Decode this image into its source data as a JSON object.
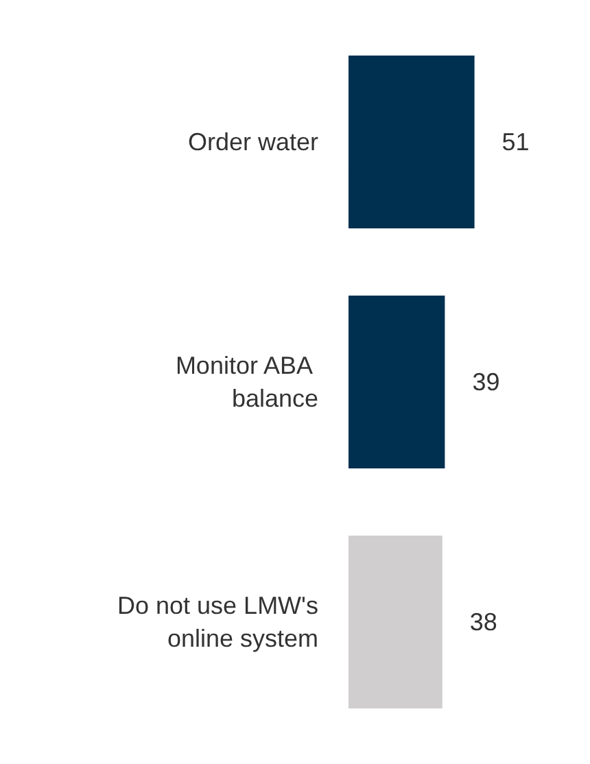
{
  "chart_data": {
    "type": "bar",
    "orientation": "horizontal",
    "categories": [
      "Order water",
      "Monitor ABA balance",
      "Do not use LMW's online system"
    ],
    "values": [
      51,
      39,
      38
    ],
    "colors": [
      "#003050",
      "#003050",
      "#d0cece"
    ],
    "data_labels": true
  }
}
